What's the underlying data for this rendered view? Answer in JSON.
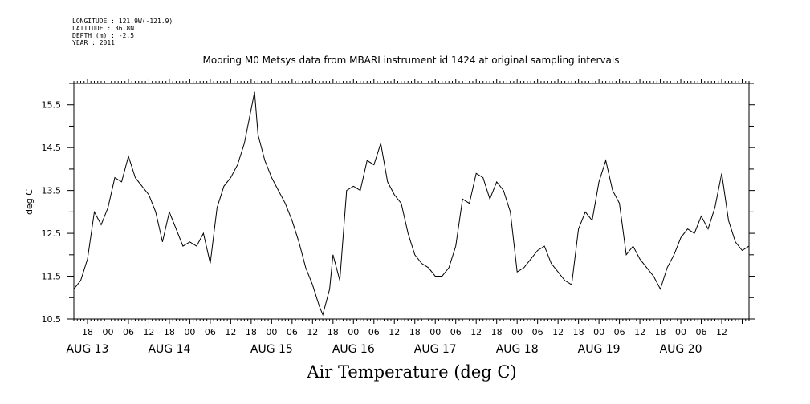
{
  "meta": {
    "longitude": "LONGITUDE : 121.9W(-121.9)",
    "latitude": "LATITUDE : 36.8N",
    "depth": "DEPTH (m) : -2.5",
    "year": "YEAR : 2011"
  },
  "title": "Mooring M0 Metsys data from MBARI instrument id 1424 at original sampling intervals",
  "footer": "Air Temperature (deg C)",
  "colors": {
    "line": "#000000",
    "axis": "#000000",
    "background": "#ffffff"
  },
  "chart_data": {
    "type": "line",
    "title": "Mooring M0 Metsys data from MBARI instrument id 1424 at original sampling intervals",
    "xlabel": "Air Temperature (deg C)",
    "ylabel": "deg C",
    "ylim": [
      10.5,
      16.0
    ],
    "xlim": [
      "2011-08-12 14:00",
      "2011-08-20 20:00"
    ],
    "grid": false,
    "legend": "none",
    "y_ticks": [
      "10.5",
      "11.5",
      "12.5",
      "13.5",
      "14.5",
      "15.5"
    ],
    "hour_ticks": [
      {
        "t": "2011-08-12 18:00",
        "label": "18"
      },
      {
        "t": "2011-08-13 00:00",
        "label": "00"
      },
      {
        "t": "2011-08-13 06:00",
        "label": "06"
      },
      {
        "t": "2011-08-13 12:00",
        "label": "12"
      },
      {
        "t": "2011-08-13 18:00",
        "label": "18"
      },
      {
        "t": "2011-08-14 00:00",
        "label": "00"
      },
      {
        "t": "2011-08-14 06:00",
        "label": "06"
      },
      {
        "t": "2011-08-14 12:00",
        "label": "12"
      },
      {
        "t": "2011-08-14 18:00",
        "label": "18"
      },
      {
        "t": "2011-08-15 00:00",
        "label": "00"
      },
      {
        "t": "2011-08-15 06:00",
        "label": "06"
      },
      {
        "t": "2011-08-15 12:00",
        "label": "12"
      },
      {
        "t": "2011-08-15 18:00",
        "label": "18"
      },
      {
        "t": "2011-08-16 00:00",
        "label": "00"
      },
      {
        "t": "2011-08-16 06:00",
        "label": "06"
      },
      {
        "t": "2011-08-16 12:00",
        "label": "12"
      },
      {
        "t": "2011-08-16 18:00",
        "label": "18"
      },
      {
        "t": "2011-08-17 00:00",
        "label": "00"
      },
      {
        "t": "2011-08-17 06:00",
        "label": "06"
      },
      {
        "t": "2011-08-17 12:00",
        "label": "12"
      },
      {
        "t": "2011-08-17 18:00",
        "label": "18"
      },
      {
        "t": "2011-08-18 00:00",
        "label": "00"
      },
      {
        "t": "2011-08-18 06:00",
        "label": "06"
      },
      {
        "t": "2011-08-18 12:00",
        "label": "12"
      },
      {
        "t": "2011-08-18 18:00",
        "label": "18"
      },
      {
        "t": "2011-08-19 00:00",
        "label": "00"
      },
      {
        "t": "2011-08-19 06:00",
        "label": "06"
      },
      {
        "t": "2011-08-19 12:00",
        "label": "12"
      },
      {
        "t": "2011-08-19 18:00",
        "label": "18"
      },
      {
        "t": "2011-08-20 00:00",
        "label": "00"
      },
      {
        "t": "2011-08-20 06:00",
        "label": "06"
      },
      {
        "t": "2011-08-20 12:00",
        "label": "12"
      }
    ],
    "date_labels": [
      {
        "t": "2011-08-12 18:00",
        "label": "AUG 13"
      },
      {
        "t": "2011-08-13 18:00",
        "label": "AUG 14"
      },
      {
        "t": "2011-08-15 00:00",
        "label": "AUG 15"
      },
      {
        "t": "2011-08-16 00:00",
        "label": "AUG 16"
      },
      {
        "t": "2011-08-17 00:00",
        "label": "AUG 17"
      },
      {
        "t": "2011-08-18 00:00",
        "label": "AUG 18"
      },
      {
        "t": "2011-08-19 00:00",
        "label": "AUG 19"
      },
      {
        "t": "2011-08-20 00:00",
        "label": "AUG 20"
      }
    ],
    "series": [
      {
        "points": [
          [
            "2011-08-12 14:00",
            11.2
          ],
          [
            "2011-08-12 16:00",
            11.4
          ],
          [
            "2011-08-12 18:00",
            11.9
          ],
          [
            "2011-08-12 20:00",
            13.0
          ],
          [
            "2011-08-12 22:00",
            12.7
          ],
          [
            "2011-08-13 00:00",
            13.1
          ],
          [
            "2011-08-13 02:00",
            13.8
          ],
          [
            "2011-08-13 04:00",
            13.7
          ],
          [
            "2011-08-13 06:00",
            14.3
          ],
          [
            "2011-08-13 08:00",
            13.8
          ],
          [
            "2011-08-13 10:00",
            13.6
          ],
          [
            "2011-08-13 12:00",
            13.4
          ],
          [
            "2011-08-13 14:00",
            13.0
          ],
          [
            "2011-08-13 16:00",
            12.3
          ],
          [
            "2011-08-13 18:00",
            13.0
          ],
          [
            "2011-08-13 20:00",
            12.6
          ],
          [
            "2011-08-13 22:00",
            12.2
          ],
          [
            "2011-08-14 00:00",
            12.3
          ],
          [
            "2011-08-14 02:00",
            12.2
          ],
          [
            "2011-08-14 04:00",
            12.5
          ],
          [
            "2011-08-14 06:00",
            11.8
          ],
          [
            "2011-08-14 08:00",
            13.1
          ],
          [
            "2011-08-14 10:00",
            13.6
          ],
          [
            "2011-08-14 12:00",
            13.8
          ],
          [
            "2011-08-14 14:00",
            14.1
          ],
          [
            "2011-08-14 16:00",
            14.6
          ],
          [
            "2011-08-14 18:00",
            15.4
          ],
          [
            "2011-08-14 19:00",
            15.8
          ],
          [
            "2011-08-14 20:00",
            14.8
          ],
          [
            "2011-08-14 22:00",
            14.2
          ],
          [
            "2011-08-15 00:00",
            13.8
          ],
          [
            "2011-08-15 02:00",
            13.5
          ],
          [
            "2011-08-15 04:00",
            13.2
          ],
          [
            "2011-08-15 06:00",
            12.8
          ],
          [
            "2011-08-15 08:00",
            12.3
          ],
          [
            "2011-08-15 10:00",
            11.7
          ],
          [
            "2011-08-15 12:00",
            11.3
          ],
          [
            "2011-08-15 14:00",
            10.8
          ],
          [
            "2011-08-15 15:00",
            10.6
          ],
          [
            "2011-08-15 17:00",
            11.2
          ],
          [
            "2011-08-15 18:00",
            12.0
          ],
          [
            "2011-08-15 20:00",
            11.4
          ],
          [
            "2011-08-15 22:00",
            13.5
          ],
          [
            "2011-08-16 00:00",
            13.6
          ],
          [
            "2011-08-16 02:00",
            13.5
          ],
          [
            "2011-08-16 04:00",
            14.2
          ],
          [
            "2011-08-16 06:00",
            14.1
          ],
          [
            "2011-08-16 08:00",
            14.6
          ],
          [
            "2011-08-16 10:00",
            13.7
          ],
          [
            "2011-08-16 12:00",
            13.4
          ],
          [
            "2011-08-16 14:00",
            13.2
          ],
          [
            "2011-08-16 16:00",
            12.5
          ],
          [
            "2011-08-16 18:00",
            12.0
          ],
          [
            "2011-08-16 20:00",
            11.8
          ],
          [
            "2011-08-16 22:00",
            11.7
          ],
          [
            "2011-08-17 00:00",
            11.5
          ],
          [
            "2011-08-17 02:00",
            11.5
          ],
          [
            "2011-08-17 04:00",
            11.7
          ],
          [
            "2011-08-17 06:00",
            12.2
          ],
          [
            "2011-08-17 08:00",
            13.3
          ],
          [
            "2011-08-17 10:00",
            13.2
          ],
          [
            "2011-08-17 12:00",
            13.9
          ],
          [
            "2011-08-17 14:00",
            13.8
          ],
          [
            "2011-08-17 16:00",
            13.3
          ],
          [
            "2011-08-17 18:00",
            13.7
          ],
          [
            "2011-08-17 20:00",
            13.5
          ],
          [
            "2011-08-17 22:00",
            13.0
          ],
          [
            "2011-08-18 00:00",
            11.6
          ],
          [
            "2011-08-18 02:00",
            11.7
          ],
          [
            "2011-08-18 04:00",
            11.9
          ],
          [
            "2011-08-18 06:00",
            12.1
          ],
          [
            "2011-08-18 08:00",
            12.2
          ],
          [
            "2011-08-18 10:00",
            11.8
          ],
          [
            "2011-08-18 12:00",
            11.6
          ],
          [
            "2011-08-18 14:00",
            11.4
          ],
          [
            "2011-08-18 16:00",
            11.3
          ],
          [
            "2011-08-18 18:00",
            12.6
          ],
          [
            "2011-08-18 20:00",
            13.0
          ],
          [
            "2011-08-18 22:00",
            12.8
          ],
          [
            "2011-08-19 00:00",
            13.7
          ],
          [
            "2011-08-19 02:00",
            14.2
          ],
          [
            "2011-08-19 04:00",
            13.5
          ],
          [
            "2011-08-19 06:00",
            13.2
          ],
          [
            "2011-08-19 08:00",
            12.0
          ],
          [
            "2011-08-19 10:00",
            12.2
          ],
          [
            "2011-08-19 12:00",
            11.9
          ],
          [
            "2011-08-19 14:00",
            11.7
          ],
          [
            "2011-08-19 16:00",
            11.5
          ],
          [
            "2011-08-19 18:00",
            11.2
          ],
          [
            "2011-08-19 20:00",
            11.7
          ],
          [
            "2011-08-19 22:00",
            12.0
          ],
          [
            "2011-08-20 00:00",
            12.4
          ],
          [
            "2011-08-20 02:00",
            12.6
          ],
          [
            "2011-08-20 04:00",
            12.5
          ],
          [
            "2011-08-20 06:00",
            12.9
          ],
          [
            "2011-08-20 08:00",
            12.6
          ],
          [
            "2011-08-20 10:00",
            13.1
          ],
          [
            "2011-08-20 12:00",
            13.9
          ],
          [
            "2011-08-20 14:00",
            12.8
          ],
          [
            "2011-08-20 16:00",
            12.3
          ],
          [
            "2011-08-20 18:00",
            12.1
          ],
          [
            "2011-08-20 20:00",
            12.2
          ]
        ]
      }
    ]
  }
}
